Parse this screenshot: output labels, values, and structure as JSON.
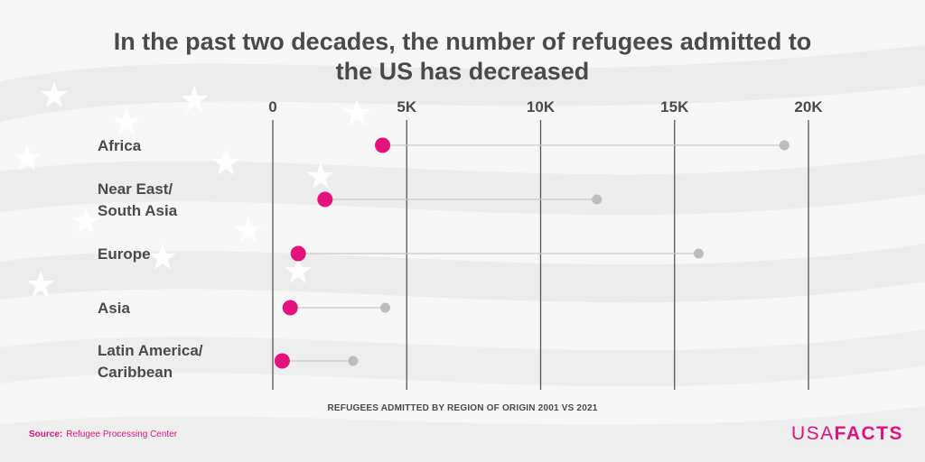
{
  "title": "In the past two decades, the number of refugees admitted to the US has decreased",
  "subtitle": "REFUGEES ADMITTED BY REGION OF ORIGIN 2001 VS 2021",
  "source": {
    "label": "Source:",
    "text": "Refugee Processing Center"
  },
  "logo": {
    "part1": "USA",
    "part2": "FACTS"
  },
  "colors": {
    "accent": "#e5127d",
    "past": "#bdbdbd",
    "gridline": "#555555",
    "text": "#4a4a4a"
  },
  "chart_data": {
    "type": "dot",
    "x_ticks": [
      "0",
      "5K",
      "10K",
      "15K",
      "20K"
    ],
    "xlim": [
      0,
      20000
    ],
    "categories": [
      {
        "label_lines": [
          "Africa"
        ]
      },
      {
        "label_lines": [
          "Near East/",
          "South Asia"
        ]
      },
      {
        "label_lines": [
          "Europe"
        ]
      },
      {
        "label_lines": [
          "Asia"
        ]
      },
      {
        "label_lines": [
          "Latin America/",
          "Caribbean"
        ]
      }
    ],
    "series": [
      {
        "values": [
          19100,
          12100,
          15900,
          4200,
          3000
        ],
        "color": "#bdbdbd"
      },
      {
        "values": [
          4100,
          1950,
          950,
          650,
          350
        ],
        "color": "#e5127d"
      }
    ]
  }
}
